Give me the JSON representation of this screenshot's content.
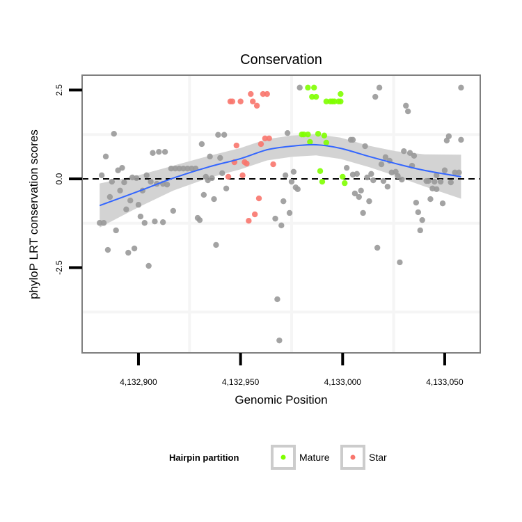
{
  "chart_data": {
    "type": "scatter",
    "title": "Conservation",
    "xlabel": "Genomic Position",
    "ylabel": "phyloP LRT conservation scores",
    "xlim": [
      4132872.4,
      4133067.4
    ],
    "ylim": [
      -4.9,
      2.92
    ],
    "x_ticks": [
      4132900,
      4132950,
      4133000,
      4133050
    ],
    "x_tick_labels": [
      "4,132,900",
      "4,132,950",
      "4,133,000",
      "4,133,050"
    ],
    "y_ticks": [
      2.5,
      0.0,
      -2.5
    ],
    "y_tick_labels": [
      "2.5",
      "0.0",
      "-2.5"
    ],
    "minor_grid_x": [
      4132925,
      4132975,
      4133025
    ],
    "minor_grid_y": [
      1.25,
      -1.25,
      -3.75
    ],
    "reference_line_y": 0,
    "legend": {
      "title": "Hairpin partition",
      "placement": "bottom",
      "entries": [
        {
          "label": "Mature",
          "color": "#7FFF00"
        },
        {
          "label": "Star",
          "color": "#F8766D"
        }
      ]
    },
    "colors": {
      "other": "#999999",
      "Mature": "#7FFF00",
      "Star": "#F8766D",
      "smooth": "#3366FF",
      "ribbon": "#D3D3D3"
    },
    "series": [
      {
        "name": "Other",
        "points": [
          [
            4132888,
            1.27
          ],
          [
            4132884,
            0.63
          ],
          [
            4132882,
            0.1
          ],
          [
            4132887,
            -0.08
          ],
          [
            4132892,
            0.31
          ],
          [
            4132890,
            0.24
          ],
          [
            4132893,
            -0.1
          ],
          [
            4132891,
            -0.33
          ],
          [
            4132886,
            -0.51
          ],
          [
            4132896,
            -0.61
          ],
          [
            4132894,
            -0.86
          ],
          [
            4132900,
            -0.73
          ],
          [
            4132897,
            0.04
          ],
          [
            4132899,
            0.02
          ],
          [
            4132904,
            0.1
          ],
          [
            4132906,
            -0.08
          ],
          [
            4132902,
            -0.33
          ],
          [
            4132901,
            -1.06
          ],
          [
            4132903,
            -1.24
          ],
          [
            4132908,
            -1.2
          ],
          [
            4132912,
            -1.22
          ],
          [
            4132917,
            -0.9
          ],
          [
            4132907,
            0.73
          ],
          [
            4132910,
            0.76
          ],
          [
            4132913,
            0.76
          ],
          [
            4132909,
            -0.14
          ],
          [
            4132912,
            -0.14
          ],
          [
            4132914,
            -0.16
          ],
          [
            4132881,
            -1.24
          ],
          [
            4132883,
            -1.24
          ],
          [
            4132889,
            -1.45
          ],
          [
            4132885,
            -2.0
          ],
          [
            4132895,
            -2.08
          ],
          [
            4132898,
            -1.96
          ],
          [
            4132905,
            -2.45
          ],
          [
            4132916,
            0.29
          ],
          [
            4132918,
            0.29
          ],
          [
            4132920,
            0.29
          ],
          [
            4132922,
            0.29
          ],
          [
            4132924,
            0.29
          ],
          [
            4132926,
            0.29
          ],
          [
            4132928,
            0.29
          ],
          [
            4132931,
            0.98
          ],
          [
            4132935,
            0.63
          ],
          [
            4132939,
            1.24
          ],
          [
            4132940,
            0.59
          ],
          [
            4132933,
            0.06
          ],
          [
            4132934,
            -0.04
          ],
          [
            4132936,
            0.02
          ],
          [
            4132932,
            -0.45
          ],
          [
            4132937,
            -0.57
          ],
          [
            4132929,
            -1.1
          ],
          [
            4132930,
            -1.16
          ],
          [
            4132938,
            -1.86
          ],
          [
            4132942,
            1.24
          ],
          [
            4132941,
            0.16
          ],
          [
            4132943,
            -0.27
          ],
          [
            4132973,
            1.29
          ],
          [
            4132976,
            0.2
          ],
          [
            4132972,
            0.1
          ],
          [
            4132975,
            -0.08
          ],
          [
            4132977,
            -0.24
          ],
          [
            4132978,
            -0.29
          ],
          [
            4132971,
            -0.63
          ],
          [
            4132974,
            -0.96
          ],
          [
            4132967,
            -1.12
          ],
          [
            4132970,
            -1.31
          ],
          [
            4132968,
            -3.39
          ],
          [
            4132969,
            -4.55
          ],
          [
            4132979,
            2.57
          ],
          [
            4133018,
            2.57
          ],
          [
            4133016,
            2.31
          ],
          [
            4133031,
            2.06
          ],
          [
            4133032,
            1.9
          ],
          [
            4133058,
            2.57
          ],
          [
            4133004,
            1.1
          ],
          [
            4133005,
            1.1
          ],
          [
            4133011,
            0.92
          ],
          [
            4133021,
            0.61
          ],
          [
            4133023,
            0.51
          ],
          [
            4133019,
            0.41
          ],
          [
            4133030,
            0.78
          ],
          [
            4133033,
            0.73
          ],
          [
            4133035,
            0.65
          ],
          [
            4133034,
            0.37
          ],
          [
            4133052,
            1.2
          ],
          [
            4133051,
            1.08
          ],
          [
            4133058,
            1.1
          ],
          [
            4133002,
            0.31
          ],
          [
            4133005,
            0.12
          ],
          [
            4133007,
            0.14
          ],
          [
            4133014,
            0.14
          ],
          [
            4133012,
            0.04
          ],
          [
            4133015,
            -0.04
          ],
          [
            4133020,
            -0.06
          ],
          [
            4133022,
            -0.22
          ],
          [
            4133024,
            0.18
          ],
          [
            4133026,
            0.2
          ],
          [
            4133027,
            0.08
          ],
          [
            4133029,
            -0.02
          ],
          [
            4133009,
            -0.33
          ],
          [
            4133006,
            -0.41
          ],
          [
            4133008,
            -0.51
          ],
          [
            4133013,
            -0.63
          ],
          [
            4133010,
            -0.96
          ],
          [
            4133017,
            -1.94
          ],
          [
            4133028,
            -2.35
          ],
          [
            4133036,
            -0.67
          ],
          [
            4133037,
            -0.94
          ],
          [
            4133039,
            -1.16
          ],
          [
            4133038,
            -1.45
          ],
          [
            4133041,
            -0.06
          ],
          [
            4133042,
            -0.06
          ],
          [
            4133045,
            -0.08
          ],
          [
            4133046,
            0.1
          ],
          [
            4133048,
            -0.08
          ],
          [
            4133050,
            0.24
          ],
          [
            4133044,
            -0.27
          ],
          [
            4133046,
            -0.29
          ],
          [
            4133043,
            -0.57
          ],
          [
            4133049,
            -0.69
          ],
          [
            4133053,
            -0.1
          ],
          [
            4133055,
            0.18
          ],
          [
            4133057,
            0.18
          ]
        ]
      },
      {
        "name": "Star",
        "points": [
          [
            4132955,
            2.39
          ],
          [
            4132961,
            2.39
          ],
          [
            4132963,
            2.39
          ],
          [
            4132945,
            2.18
          ],
          [
            4132946,
            2.18
          ],
          [
            4132950,
            2.18
          ],
          [
            4132956,
            2.18
          ],
          [
            4132958,
            2.06
          ],
          [
            4132962,
            1.14
          ],
          [
            4132964,
            1.14
          ],
          [
            4132948,
            0.94
          ],
          [
            4132960,
            0.98
          ],
          [
            4132947,
            0.47
          ],
          [
            4132952,
            0.47
          ],
          [
            4132953,
            0.43
          ],
          [
            4132966,
            0.41
          ],
          [
            4132944,
            0.06
          ],
          [
            4132951,
            0.1
          ],
          [
            4132959,
            -0.55
          ],
          [
            4132957,
            -1.0
          ],
          [
            4132954,
            -1.18
          ]
        ]
      },
      {
        "name": "Mature",
        "points": [
          [
            4132983,
            2.57
          ],
          [
            4132986,
            2.57
          ],
          [
            4132985,
            2.31
          ],
          [
            4132987,
            2.31
          ],
          [
            4132999,
            2.39
          ],
          [
            4132992,
            2.18
          ],
          [
            4132994,
            2.18
          ],
          [
            4132995,
            2.18
          ],
          [
            4132996,
            2.18
          ],
          [
            4132998,
            2.18
          ],
          [
            4132999,
            2.18
          ],
          [
            4132980,
            1.25
          ],
          [
            4132981,
            1.25
          ],
          [
            4132983,
            1.25
          ],
          [
            4132988,
            1.27
          ],
          [
            4132991,
            1.22
          ],
          [
            4132984,
            1.04
          ],
          [
            4132992,
            1.02
          ],
          [
            4132989,
            0.22
          ],
          [
            4132990,
            -0.08
          ],
          [
            4133000,
            0.06
          ],
          [
            4133001,
            -0.12
          ]
        ]
      }
    ],
    "smooth": {
      "x": [
        4132881,
        4132900,
        4132917,
        4132934,
        4132950,
        4132963,
        4132975,
        4132987,
        4132999,
        4133013,
        4133026,
        4133040,
        4133058
      ],
      "y": [
        -0.75,
        -0.35,
        0.02,
        0.33,
        0.57,
        0.82,
        0.92,
        0.96,
        0.86,
        0.63,
        0.43,
        0.24,
        0.06
      ],
      "se": [
        0.62,
        0.45,
        0.35,
        0.31,
        0.3,
        0.3,
        0.3,
        0.3,
        0.3,
        0.3,
        0.35,
        0.45,
        0.62
      ]
    }
  }
}
